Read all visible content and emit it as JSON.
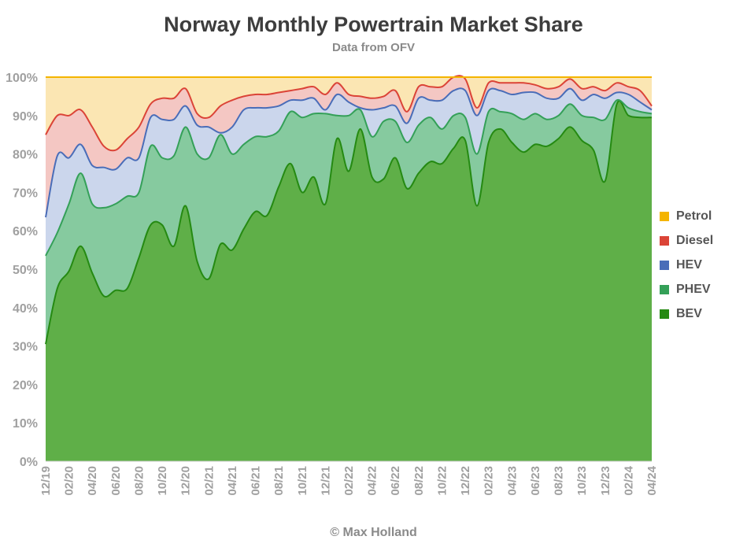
{
  "header": {
    "title": "Norway Monthly Powertrain Market Share",
    "subtitle": "Data from OFV"
  },
  "footer": {
    "credit": "© Max Holland"
  },
  "colors": {
    "fills": {
      "Petrol": "#fbe6b3",
      "Diesel": "#f4c7c3",
      "HEV": "#cbd6ec",
      "PHEV": "#86ca9f",
      "BEV": "#5faf48"
    },
    "lines": {
      "Petrol": "#f4b400",
      "Diesel": "#db4437",
      "HEV": "#4a6db8",
      "PHEV": "#34a058",
      "BEV": "#258a12"
    },
    "grid": "#e6e6e6",
    "axis_text": "#a0a0a0"
  },
  "chart_data": {
    "type": "area",
    "stacked": true,
    "title": "Norway Monthly Powertrain Market Share",
    "subtitle": "Data from OFV",
    "xlabel": "",
    "ylabel": "",
    "ylim": [
      0,
      100
    ],
    "y_ticks": [
      "0%",
      "10%",
      "20%",
      "30%",
      "40%",
      "50%",
      "60%",
      "70%",
      "80%",
      "90%",
      "100%"
    ],
    "x_tick_labels": [
      "12/19",
      "02/20",
      "04/20",
      "06/20",
      "08/20",
      "10/20",
      "12/20",
      "02/21",
      "04/21",
      "06/21",
      "08/21",
      "10/21",
      "12/21",
      "02/22",
      "04/22",
      "06/22",
      "08/22",
      "10/22",
      "12/22",
      "02/23",
      "04/23",
      "06/23",
      "08/23",
      "10/23",
      "12/23",
      "02/24",
      "04/24"
    ],
    "legend_position": "right",
    "grid": true,
    "x": [
      "12/19",
      "01/20",
      "02/20",
      "03/20",
      "04/20",
      "05/20",
      "06/20",
      "07/20",
      "08/20",
      "09/20",
      "10/20",
      "11/20",
      "12/20",
      "01/21",
      "02/21",
      "03/21",
      "04/21",
      "05/21",
      "06/21",
      "07/21",
      "08/21",
      "09/21",
      "10/21",
      "11/21",
      "12/21",
      "01/22",
      "02/22",
      "03/22",
      "04/22",
      "05/22",
      "06/22",
      "07/22",
      "08/22",
      "09/22",
      "10/22",
      "11/22",
      "12/22",
      "01/23",
      "02/23",
      "03/23",
      "04/23",
      "05/23",
      "06/23",
      "07/23",
      "08/23",
      "09/23",
      "10/23",
      "11/23",
      "12/23",
      "01/24",
      "02/24",
      "03/24",
      "04/24"
    ],
    "series": [
      {
        "name": "BEV",
        "values": [
          30.5,
          45,
          49.5,
          56,
          49,
          43,
          44.5,
          45,
          53,
          61.5,
          61.5,
          56,
          66.5,
          52,
          47.5,
          56.5,
          55,
          60.5,
          65,
          64,
          71.5,
          77.5,
          70,
          74,
          67,
          84,
          75.5,
          86.5,
          74,
          73.5,
          79,
          71,
          75,
          78,
          77.5,
          81.5,
          83.5,
          66.5,
          83,
          86.5,
          83,
          80.5,
          82.5,
          82,
          84,
          87,
          83.5,
          81,
          73,
          93,
          90,
          89.5,
          89.5
        ]
      },
      {
        "name": "PHEV",
        "values": [
          23,
          14.5,
          17.5,
          19,
          18,
          23,
          22.5,
          24,
          17,
          20.5,
          17.5,
          23.5,
          20.5,
          28,
          31.5,
          28.5,
          25,
          22,
          19.5,
          20.5,
          14.5,
          13.5,
          19.5,
          16.5,
          23.5,
          6,
          14.5,
          5,
          10.5,
          15,
          9.5,
          12,
          12.5,
          11.5,
          9,
          8.5,
          6,
          13.5,
          8,
          4.5,
          7.5,
          8.5,
          8,
          7,
          6,
          6,
          6.5,
          8.5,
          16,
          1,
          2,
          1.5,
          1
        ]
      },
      {
        "name": "HEV",
        "values": [
          10,
          20,
          12,
          7.5,
          10,
          10.5,
          9,
          10,
          9,
          7.5,
          10,
          9.5,
          5.5,
          7.5,
          8,
          0.5,
          7,
          9,
          7.5,
          7.5,
          6.5,
          3,
          4.5,
          4,
          1,
          5.5,
          3.5,
          0.5,
          7,
          3.5,
          4,
          5,
          7,
          4.5,
          7.5,
          6.5,
          7,
          10,
          5.5,
          5.5,
          5,
          7,
          5.5,
          5.5,
          4.5,
          4,
          4,
          6,
          5.5,
          2,
          3.5,
          2.5,
          1
        ]
      },
      {
        "name": "Diesel",
        "values": [
          21.5,
          10.5,
          11,
          9,
          10,
          5.5,
          5,
          5,
          8,
          3.5,
          5.5,
          5.5,
          4.5,
          3,
          2.5,
          7,
          7,
          3.5,
          3.5,
          3.5,
          3.5,
          2.5,
          3,
          3,
          4,
          3,
          2,
          3,
          3,
          3,
          4,
          3,
          3,
          3.5,
          3.5,
          4,
          3,
          2,
          2,
          2,
          3,
          2.5,
          2,
          2.5,
          3,
          2.5,
          3,
          2,
          2,
          2.5,
          2,
          3,
          1
        ]
      },
      {
        "name": "Petrol",
        "values": [
          15,
          10,
          10,
          8.5,
          13,
          18,
          19,
          16,
          13,
          7,
          5.5,
          5.5,
          3,
          9.5,
          10.5,
          7.5,
          6,
          5,
          4.5,
          4.5,
          4,
          3.5,
          3,
          2.5,
          4.5,
          1.5,
          4.5,
          5,
          5.5,
          5,
          3.5,
          9,
          2.5,
          2.5,
          2.5,
          0.5,
          1,
          8,
          1.5,
          1.5,
          1.5,
          1.5,
          2,
          3,
          2.5,
          0.5,
          3,
          2.5,
          3.5,
          1.5,
          2.5,
          3.5,
          7.5
        ]
      }
    ]
  }
}
